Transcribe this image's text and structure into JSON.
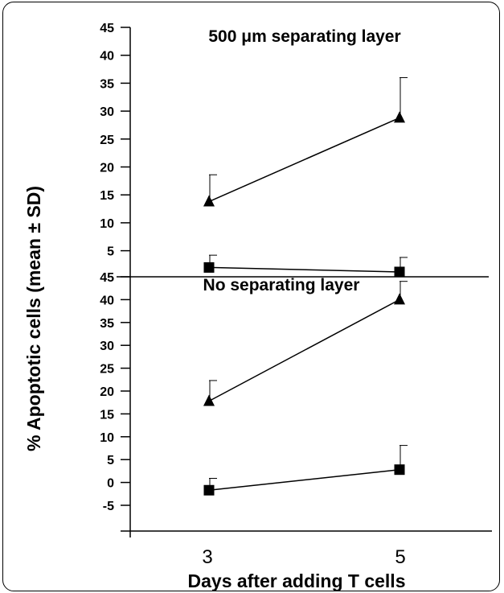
{
  "chart_data": {
    "type": "line",
    "ylabel": "% Apoptotic cells (mean ± SD)",
    "xlabel": "Days after adding T cells",
    "categories": [
      "3",
      "5"
    ],
    "panels": [
      {
        "title": "500 μm separating layer",
        "ylim": [
          0,
          45
        ],
        "yticks": [
          "45",
          "40",
          "35",
          "30",
          "25",
          "20",
          "15",
          "10",
          "5"
        ],
        "series": [
          {
            "marker": "triangle",
            "values": [
              13.8,
              28.8
            ],
            "sd": [
              4.8,
              7.2
            ]
          },
          {
            "marker": "square",
            "values": [
              2.0,
              1.2
            ],
            "sd": [
              2.2,
              2.6
            ]
          }
        ]
      },
      {
        "title": "No separating layer",
        "ylim": [
          -5,
          45
        ],
        "yticks": [
          "45",
          "40",
          "35",
          "30",
          "25",
          "20",
          "15",
          "10",
          "5",
          "0",
          "-5"
        ],
        "series": [
          {
            "marker": "triangle",
            "values": [
              17.8,
              40.0
            ],
            "sd": [
              4.5,
              4.0
            ]
          },
          {
            "marker": "square",
            "values": [
              -1.7,
              2.8
            ],
            "sd": [
              2.6,
              5.3
            ]
          }
        ]
      }
    ]
  }
}
